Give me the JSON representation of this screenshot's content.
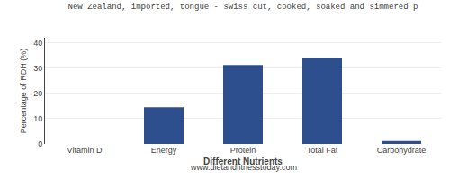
{
  "chart_data": {
    "type": "bar",
    "title": "New Zealand, imported, tongue - swiss cut, cooked, soaked and simmered p",
    "subtitle": "www.dietandfitnesstoday.com",
    "categories": [
      "Vitamin D",
      "Energy",
      "Protein",
      "Total Fat",
      "Carbohydrate"
    ],
    "values": [
      0.0,
      14.5,
      31.2,
      34.2,
      1.2
    ],
    "color": "#2d4f8e",
    "xlabel": "Different Nutrients",
    "ylabel": "Percentage of RDH (%)",
    "ylim": [
      0,
      42
    ],
    "yticks": [
      0,
      10,
      20,
      30,
      40
    ],
    "grid": true
  }
}
